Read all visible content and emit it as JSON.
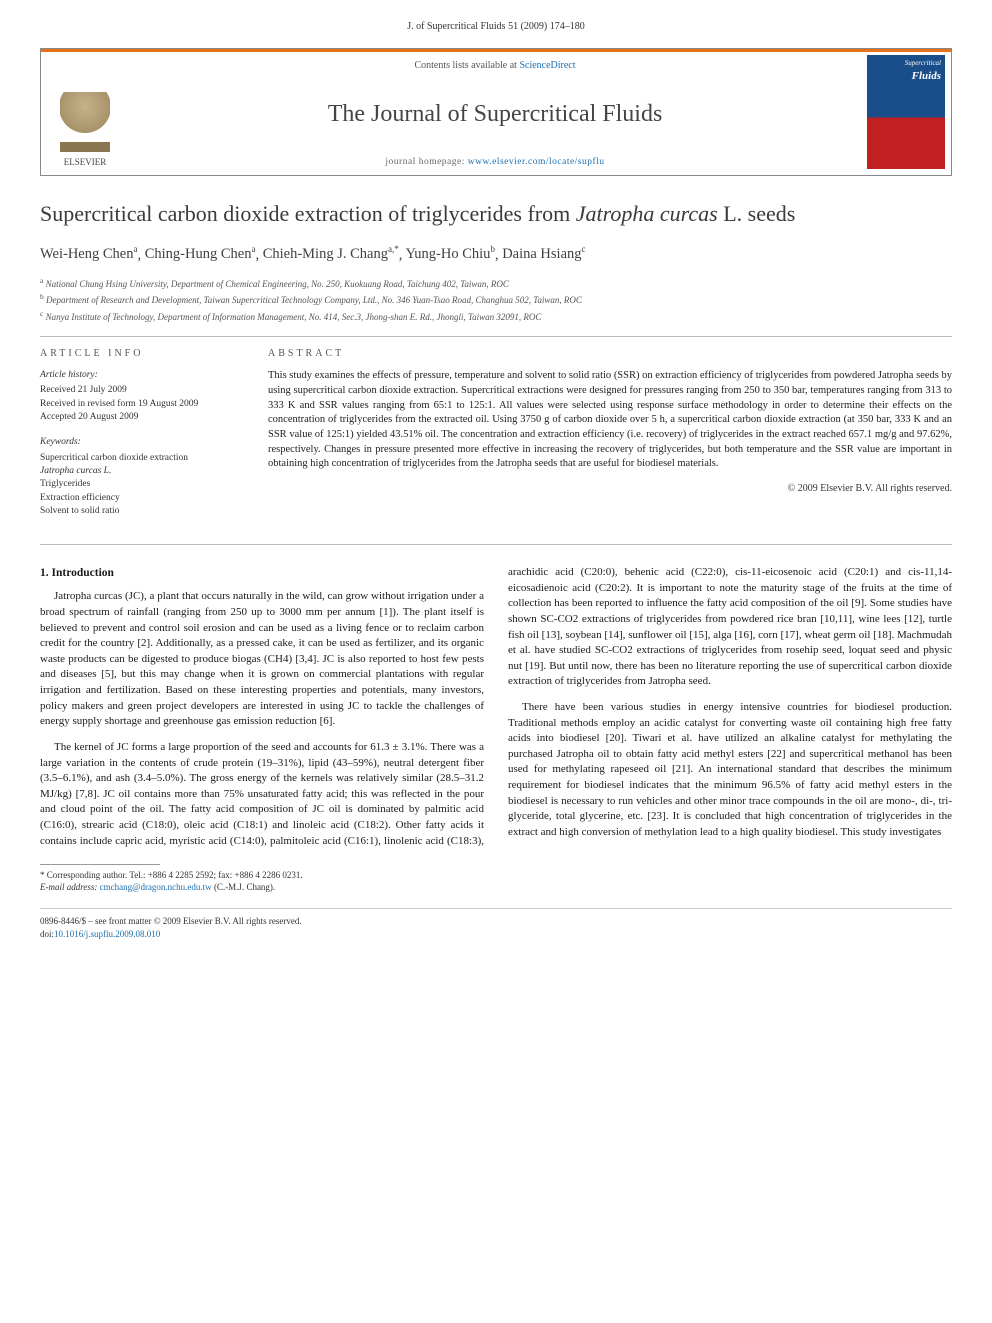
{
  "journal_ref": "J. of Supercritical Fluids 51 (2009) 174–180",
  "header": {
    "contents_prefix": "Contents lists available at ",
    "contents_link": "ScienceDirect",
    "journal_title": "The Journal of Supercritical Fluids",
    "homepage_prefix": "journal homepage: ",
    "homepage_link": "www.elsevier.com/locate/supflu",
    "publisher": "ELSEVIER",
    "cover_line1": "Supercritical",
    "cover_line2": "Fluids"
  },
  "title_pre": "Supercritical carbon dioxide extraction of triglycerides from ",
  "title_em": "Jatropha curcas",
  "title_post": " L. seeds",
  "authors": [
    {
      "name": "Wei-Heng Chen",
      "sup": "a"
    },
    {
      "name": "Ching-Hung Chen",
      "sup": "a"
    },
    {
      "name": "Chieh-Ming J. Chang",
      "sup": "a,",
      "star": "*"
    },
    {
      "name": "Yung-Ho Chiu",
      "sup": "b"
    },
    {
      "name": "Daina Hsiang",
      "sup": "c"
    }
  ],
  "affiliations": [
    {
      "sup": "a",
      "text": "National Chung Hsing University, Department of Chemical Engineering, No. 250, Kuokuang Road, Taichung 402, Taiwan, ROC"
    },
    {
      "sup": "b",
      "text": "Department of Research and Development, Taiwan Supercritical Technology Company, Ltd., No. 346 Yuan-Tsao Road, Changhua 502, Taiwan, ROC"
    },
    {
      "sup": "c",
      "text": "Nanya Institute of Technology, Department of Information Management, No. 414, Sec.3, Jhong-shan E. Rd., Jhongli, Taiwan 32091, ROC"
    }
  ],
  "info": {
    "heading": "ARTICLE INFO",
    "history_heading": "Article history:",
    "history": [
      "Received 21 July 2009",
      "Received in revised form 19 August 2009",
      "Accepted 20 August 2009"
    ],
    "keywords_heading": "Keywords:",
    "keywords": [
      "Supercritical carbon dioxide extraction",
      "Jatropha curcas L.",
      "Triglycerides",
      "Extraction efficiency",
      "Solvent to solid ratio"
    ]
  },
  "abstract": {
    "heading": "ABSTRACT",
    "text": "This study examines the effects of pressure, temperature and solvent to solid ratio (SSR) on extraction efficiency of triglycerides from powdered Jatropha seeds by using supercritical carbon dioxide extraction. Supercritical extractions were designed for pressures ranging from 250 to 350 bar, temperatures ranging from 313 to 333 K and SSR values ranging from 65:1 to 125:1. All values were selected using response surface methodology in order to determine their effects on the concentration of triglycerides from the extracted oil. Using 3750 g of carbon dioxide over 5 h, a supercritical carbon dioxide extraction (at 350 bar, 333 K and an SSR value of 125:1) yielded 43.51% oil. The concentration and extraction efficiency (i.e. recovery) of triglycerides in the extract reached 657.1 mg/g and 97.62%, respectively. Changes in pressure presented more effective in increasing the recovery of triglycerides, but both temperature and the SSR value are important in obtaining high concentration of triglycerides from the Jatropha seeds that are useful for biodiesel materials.",
    "copyright": "© 2009 Elsevier B.V. All rights reserved."
  },
  "section1_heading": "1.  Introduction",
  "body": {
    "p1": "Jatropha curcas (JC), a plant that occurs naturally in the wild, can grow without irrigation under a broad spectrum of rainfall (ranging from 250 up to 3000 mm per annum [1]). The plant itself is believed to prevent and control soil erosion and can be used as a living fence or to reclaim carbon credit for the country [2]. Additionally, as a pressed cake, it can be used as fertilizer, and its organic waste products can be digested to produce biogas (CH4) [3,4]. JC is also reported to host few pests and diseases [5], but this may change when it is grown on commercial plantations with regular irrigation and fertilization. Based on these interesting properties and potentials, many investors, policy makers and green project developers are interested in using JC to tackle the challenges of energy supply shortage and greenhouse gas emission reduction [6].",
    "p2": "The kernel of JC forms a large proportion of the seed and accounts for 61.3 ± 3.1%. There was a large variation in the contents of crude protein (19–31%), lipid (43–59%), neutral detergent fiber (3.5–6.1%), and ash (3.4–5.0%). The gross energy of the kernels was relatively similar (28.5–31.2 MJ/kg) [7,8]. JC oil contains more than 75% unsaturated fatty acid; this was reflected in the pour and cloud point of the oil. The fatty acid composition of JC oil is dominated by palmitic acid (C16:0), strearic acid (C18:0), oleic acid (C18:1) and linoleic acid (C18:2). Other fatty acids it contains include capric acid, myristic acid (C14:0), palmitoleic acid (C16:1), linolenic acid (C18:3), arachidic acid (C20:0), behenic acid (C22:0), cis-11-eicosenoic acid (C20:1) and cis-11,14-eicosadienoic acid (C20:2). It is important to note the maturity stage of the fruits at the time of collection has been reported to influence the fatty acid composition of the oil [9]. Some studies have shown SC-CO2 extractions of triglycerides from powdered rice bran [10,11], wine lees [12], turtle fish oil [13], soybean [14], sunflower oil [15], alga [16], corn [17], wheat germ oil [18]. Machmudah et al. have studied SC-CO2 extractions of triglycerides from rosehip seed, loquat seed and physic nut [19]. But until now, there has been no literature reporting the use of supercritical carbon dioxide extraction of triglycerides from Jatropha seed.",
    "p3": "There have been various studies in energy intensive countries for biodiesel production. Traditional methods employ an acidic catalyst for converting waste oil containing high free fatty acids into biodiesel [20]. Tiwari et al. have utilized an alkaline catalyst for methylating the purchased Jatropha oil to obtain fatty acid methyl esters [22] and supercritical methanol has been used for methylating rapeseed oil [21]. An international standard that describes the minimum requirement for biodiesel indicates that the minimum 96.5% of fatty acid methyl esters in the biodiesel is necessary to run vehicles and other minor trace compounds in the oil are mono-, di-, tri-glyceride, total glycerine, etc. [23]. It is concluded that high concentration of triglycerides in the extract and high conversion of methylation lead to a high quality biodiesel. This study investigates"
  },
  "footnote": {
    "corr": "* Corresponding author. Tel.: +886 4 2285 2592; fax: +886 4 2286 0231.",
    "email_label": "E-mail address: ",
    "email": "cmchang@dragon.nchu.edu.tw",
    "email_who": " (C.-M.J. Chang)."
  },
  "bottom": {
    "left": "0896-8446/$ – see front matter © 2009 Elsevier B.V. All rights reserved.",
    "doi_label": "doi:",
    "doi": "10.1016/j.supflu.2009.08.010"
  },
  "colors": {
    "accent": "#e9711c",
    "link": "#1a6fb0",
    "rule": "#bbbbbb",
    "text": "#222222"
  }
}
